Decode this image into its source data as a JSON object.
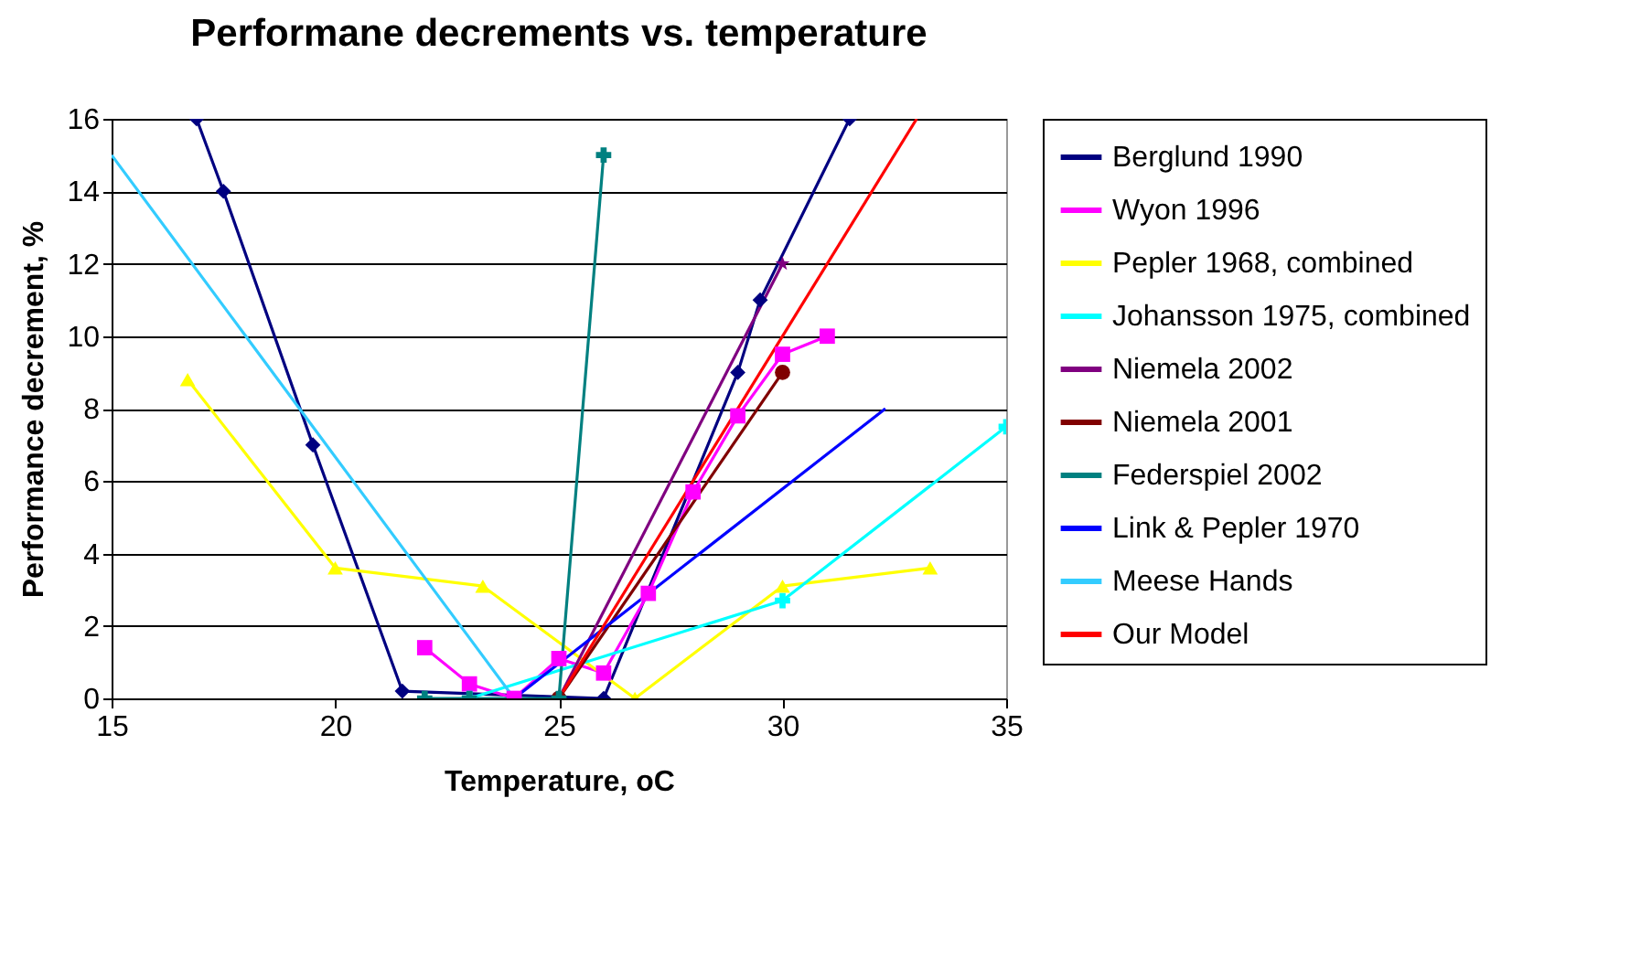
{
  "chart_data": {
    "type": "line",
    "title": "Performane decrements vs. temperature",
    "xlabel": "Temperature, oC",
    "ylabel": "Performance decrement, %",
    "xlim": [
      15,
      35
    ],
    "xticks": [
      15,
      20,
      25,
      30,
      35
    ],
    "ylim": [
      0,
      16
    ],
    "yticks": [
      0,
      2,
      4,
      6,
      8,
      10,
      12,
      14,
      16
    ],
    "grid": "y",
    "legend": "right",
    "series": [
      {
        "name": "Berglund 1990",
        "color": "#000080",
        "marker": "diamond",
        "x": [
          16.9,
          17.5,
          19.5,
          21.5,
          26,
          29,
          29.5,
          31.5
        ],
        "values": [
          16,
          14,
          7,
          0.2,
          0,
          9,
          11,
          16
        ]
      },
      {
        "name": "Wyon 1996",
        "color": "#ff00ff",
        "marker": "square",
        "x": [
          22,
          23,
          24,
          25,
          26,
          27,
          28,
          29,
          30,
          31
        ],
        "values": [
          1.4,
          0.4,
          0,
          1.1,
          0.7,
          2.9,
          5.7,
          7.8,
          9.5,
          10
        ]
      },
      {
        "name": "Pepler 1968, combined",
        "color": "#ffff00",
        "marker": "triangle",
        "x": [
          16.7,
          20,
          23.3,
          26.7,
          30,
          33.3
        ],
        "values": [
          8.8,
          3.6,
          3.1,
          0,
          3.1,
          3.6
        ]
      },
      {
        "name": "Johansson 1975, combined",
        "color": "#00ffff",
        "marker": "cross",
        "x": [
          23,
          30,
          35
        ],
        "values": [
          0,
          2.7,
          7.5
        ]
      },
      {
        "name": "Niemela 2002",
        "color": "#800080",
        "marker": "star",
        "x": [
          25,
          30
        ],
        "values": [
          0,
          12
        ]
      },
      {
        "name": "Niemela 2001",
        "color": "#800000",
        "marker": "circle",
        "x": [
          25,
          30
        ],
        "values": [
          0,
          9
        ]
      },
      {
        "name": "Federspiel 2002",
        "color": "#008080",
        "marker": "cross",
        "x": [
          22,
          23,
          25,
          26
        ],
        "values": [
          0,
          0,
          0,
          15
        ]
      },
      {
        "name": "Link & Pepler 1970",
        "color": "#0000ff",
        "marker": "none",
        "x": [
          24,
          32.3
        ],
        "values": [
          0,
          8
        ]
      },
      {
        "name": "Meese Hands",
        "color": "#33ccff",
        "marker": "none",
        "x": [
          15,
          18,
          24
        ],
        "values": [
          15,
          10,
          0
        ]
      },
      {
        "name": "Our Model",
        "color": "#ff0000",
        "marker": "none",
        "x": [
          25,
          33
        ],
        "values": [
          0,
          16
        ]
      }
    ]
  }
}
